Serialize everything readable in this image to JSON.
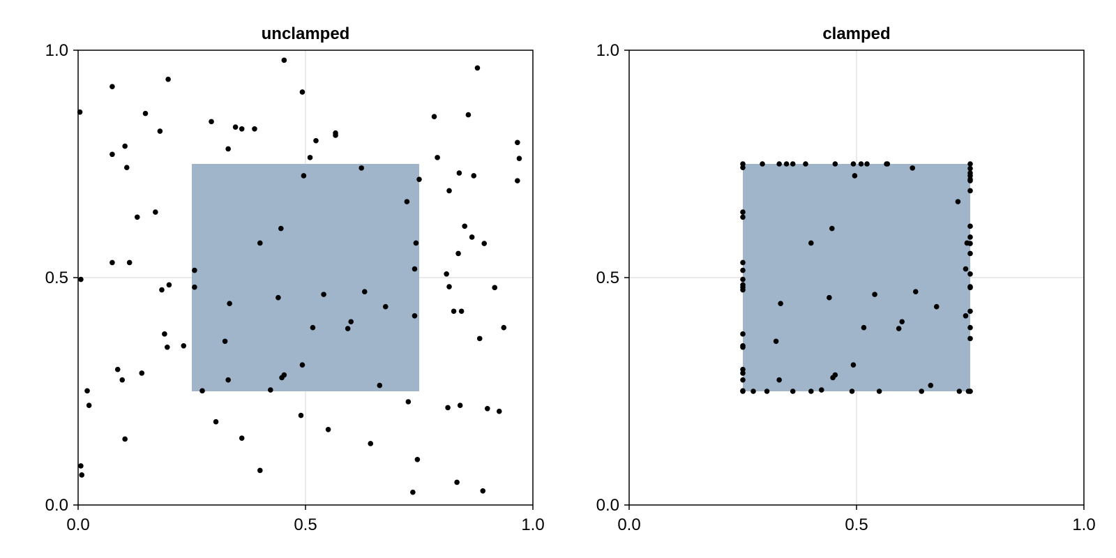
{
  "chart_data": [
    {
      "type": "scatter",
      "title": "unclamped",
      "xlabel": "",
      "ylabel": "",
      "xlim": [
        0,
        1
      ],
      "ylim": [
        0,
        1
      ],
      "xticks": [
        "0.0",
        "0.5",
        "1.0"
      ],
      "yticks": [
        "0.0",
        "0.5",
        "1.0"
      ],
      "grid": true,
      "rect": {
        "x0": 0.25,
        "x1": 0.75,
        "y0": 0.25,
        "y1": 0.75,
        "color": "#a0b4ca"
      },
      "marker_color": "#000000",
      "points": [
        [
          0.004,
          0.864
        ],
        [
          0.006,
          0.496
        ],
        [
          0.006,
          0.086
        ],
        [
          0.008,
          0.066
        ],
        [
          0.02,
          0.251
        ],
        [
          0.024,
          0.219
        ],
        [
          0.075,
          0.92
        ],
        [
          0.075,
          0.771
        ],
        [
          0.075,
          0.533
        ],
        [
          0.087,
          0.298
        ],
        [
          0.097,
          0.275
        ],
        [
          0.103,
          0.789
        ],
        [
          0.107,
          0.742
        ],
        [
          0.103,
          0.145
        ],
        [
          0.113,
          0.533
        ],
        [
          0.13,
          0.633
        ],
        [
          0.14,
          0.29
        ],
        [
          0.148,
          0.861
        ],
        [
          0.17,
          0.644
        ],
        [
          0.18,
          0.822
        ],
        [
          0.184,
          0.473
        ],
        [
          0.19,
          0.376
        ],
        [
          0.198,
          0.936
        ],
        [
          0.196,
          0.347
        ],
        [
          0.2,
          0.484
        ],
        [
          0.232,
          0.35
        ],
        [
          0.256,
          0.516
        ],
        [
          0.256,
          0.479
        ],
        [
          0.273,
          0.251
        ],
        [
          0.293,
          0.843
        ],
        [
          0.303,
          0.183
        ],
        [
          0.33,
          0.783
        ],
        [
          0.323,
          0.36
        ],
        [
          0.333,
          0.443
        ],
        [
          0.33,
          0.275
        ],
        [
          0.346,
          0.831
        ],
        [
          0.36,
          0.827
        ],
        [
          0.36,
          0.147
        ],
        [
          0.388,
          0.827
        ],
        [
          0.4,
          0.576
        ],
        [
          0.4,
          0.076
        ],
        [
          0.423,
          0.253
        ],
        [
          0.44,
          0.456
        ],
        [
          0.446,
          0.608
        ],
        [
          0.448,
          0.28
        ],
        [
          0.453,
          0.286
        ],
        [
          0.453,
          0.978
        ],
        [
          0.493,
          0.908
        ],
        [
          0.496,
          0.724
        ],
        [
          0.493,
          0.308
        ],
        [
          0.49,
          0.197
        ],
        [
          0.51,
          0.764
        ],
        [
          0.516,
          0.39
        ],
        [
          0.523,
          0.801
        ],
        [
          0.54,
          0.463
        ],
        [
          0.55,
          0.166
        ],
        [
          0.566,
          0.818
        ],
        [
          0.566,
          0.813
        ],
        [
          0.593,
          0.388
        ],
        [
          0.6,
          0.403
        ],
        [
          0.623,
          0.741
        ],
        [
          0.63,
          0.469
        ],
        [
          0.643,
          0.135
        ],
        [
          0.663,
          0.263
        ],
        [
          0.676,
          0.436
        ],
        [
          0.723,
          0.667
        ],
        [
          0.726,
          0.227
        ],
        [
          0.74,
          0.416
        ],
        [
          0.74,
          0.519
        ],
        [
          0.743,
          0.576
        ],
        [
          0.746,
          0.1
        ],
        [
          0.75,
          0.716
        ],
        [
          0.736,
          0.028
        ],
        [
          0.783,
          0.854
        ],
        [
          0.79,
          0.764
        ],
        [
          0.81,
          0.508
        ],
        [
          0.816,
          0.48
        ],
        [
          0.813,
          0.214
        ],
        [
          0.816,
          0.691
        ],
        [
          0.826,
          0.426
        ],
        [
          0.833,
          0.05
        ],
        [
          0.836,
          0.553
        ],
        [
          0.838,
          0.73
        ],
        [
          0.84,
          0.219
        ],
        [
          0.843,
          0.426
        ],
        [
          0.85,
          0.613
        ],
        [
          0.858,
          0.858
        ],
        [
          0.866,
          0.589
        ],
        [
          0.87,
          0.724
        ],
        [
          0.878,
          0.961
        ],
        [
          0.883,
          0.366
        ],
        [
          0.89,
          0.031
        ],
        [
          0.893,
          0.575
        ],
        [
          0.9,
          0.212
        ],
        [
          0.916,
          0.478
        ],
        [
          0.926,
          0.206
        ],
        [
          0.936,
          0.39
        ],
        [
          0.966,
          0.797
        ],
        [
          0.966,
          0.713
        ],
        [
          0.97,
          0.762
        ]
      ]
    },
    {
      "type": "scatter",
      "title": "clamped",
      "xlabel": "",
      "ylabel": "",
      "xlim": [
        0,
        1
      ],
      "ylim": [
        0,
        1
      ],
      "xticks": [
        "0.0",
        "0.5",
        "1.0"
      ],
      "yticks": [
        "0.0",
        "0.5",
        "1.0"
      ],
      "grid": true,
      "rect": {
        "x0": 0.25,
        "x1": 0.75,
        "y0": 0.25,
        "y1": 0.75,
        "color": "#a0b4ca"
      },
      "marker_color": "#000000",
      "points": [
        [
          0.25,
          0.75
        ],
        [
          0.25,
          0.742
        ],
        [
          0.25,
          0.644
        ],
        [
          0.25,
          0.633
        ],
        [
          0.25,
          0.533
        ],
        [
          0.25,
          0.516
        ],
        [
          0.25,
          0.496
        ],
        [
          0.25,
          0.484
        ],
        [
          0.25,
          0.479
        ],
        [
          0.25,
          0.473
        ],
        [
          0.25,
          0.376
        ],
        [
          0.25,
          0.35
        ],
        [
          0.25,
          0.347
        ],
        [
          0.25,
          0.298
        ],
        [
          0.25,
          0.29
        ],
        [
          0.25,
          0.275
        ],
        [
          0.25,
          0.251
        ],
        [
          0.25,
          0.25
        ],
        [
          0.273,
          0.25
        ],
        [
          0.293,
          0.75
        ],
        [
          0.303,
          0.25
        ],
        [
          0.323,
          0.36
        ],
        [
          0.33,
          0.75
        ],
        [
          0.333,
          0.443
        ],
        [
          0.33,
          0.275
        ],
        [
          0.346,
          0.75
        ],
        [
          0.36,
          0.75
        ],
        [
          0.36,
          0.25
        ],
        [
          0.388,
          0.75
        ],
        [
          0.4,
          0.576
        ],
        [
          0.4,
          0.25
        ],
        [
          0.423,
          0.253
        ],
        [
          0.44,
          0.456
        ],
        [
          0.446,
          0.608
        ],
        [
          0.448,
          0.28
        ],
        [
          0.453,
          0.286
        ],
        [
          0.453,
          0.75
        ],
        [
          0.493,
          0.75
        ],
        [
          0.496,
          0.724
        ],
        [
          0.493,
          0.308
        ],
        [
          0.49,
          0.25
        ],
        [
          0.51,
          0.75
        ],
        [
          0.516,
          0.39
        ],
        [
          0.523,
          0.75
        ],
        [
          0.54,
          0.463
        ],
        [
          0.55,
          0.25
        ],
        [
          0.566,
          0.75
        ],
        [
          0.568,
          0.75
        ],
        [
          0.593,
          0.388
        ],
        [
          0.6,
          0.403
        ],
        [
          0.623,
          0.741
        ],
        [
          0.63,
          0.469
        ],
        [
          0.643,
          0.25
        ],
        [
          0.663,
          0.263
        ],
        [
          0.676,
          0.436
        ],
        [
          0.723,
          0.667
        ],
        [
          0.726,
          0.25
        ],
        [
          0.74,
          0.416
        ],
        [
          0.74,
          0.519
        ],
        [
          0.743,
          0.576
        ],
        [
          0.746,
          0.25
        ],
        [
          0.75,
          0.716
        ],
        [
          0.75,
          0.25
        ],
        [
          0.75,
          0.75
        ],
        [
          0.75,
          0.508
        ],
        [
          0.75,
          0.48
        ],
        [
          0.75,
          0.691
        ],
        [
          0.75,
          0.426
        ],
        [
          0.75,
          0.553
        ],
        [
          0.75,
          0.73
        ],
        [
          0.75,
          0.613
        ],
        [
          0.75,
          0.589
        ],
        [
          0.75,
          0.724
        ],
        [
          0.75,
          0.366
        ],
        [
          0.75,
          0.575
        ],
        [
          0.75,
          0.478
        ],
        [
          0.75,
          0.39
        ],
        [
          0.75,
          0.713
        ],
        [
          0.75,
          0.74
        ],
        [
          0.75,
          0.25
        ]
      ]
    }
  ]
}
